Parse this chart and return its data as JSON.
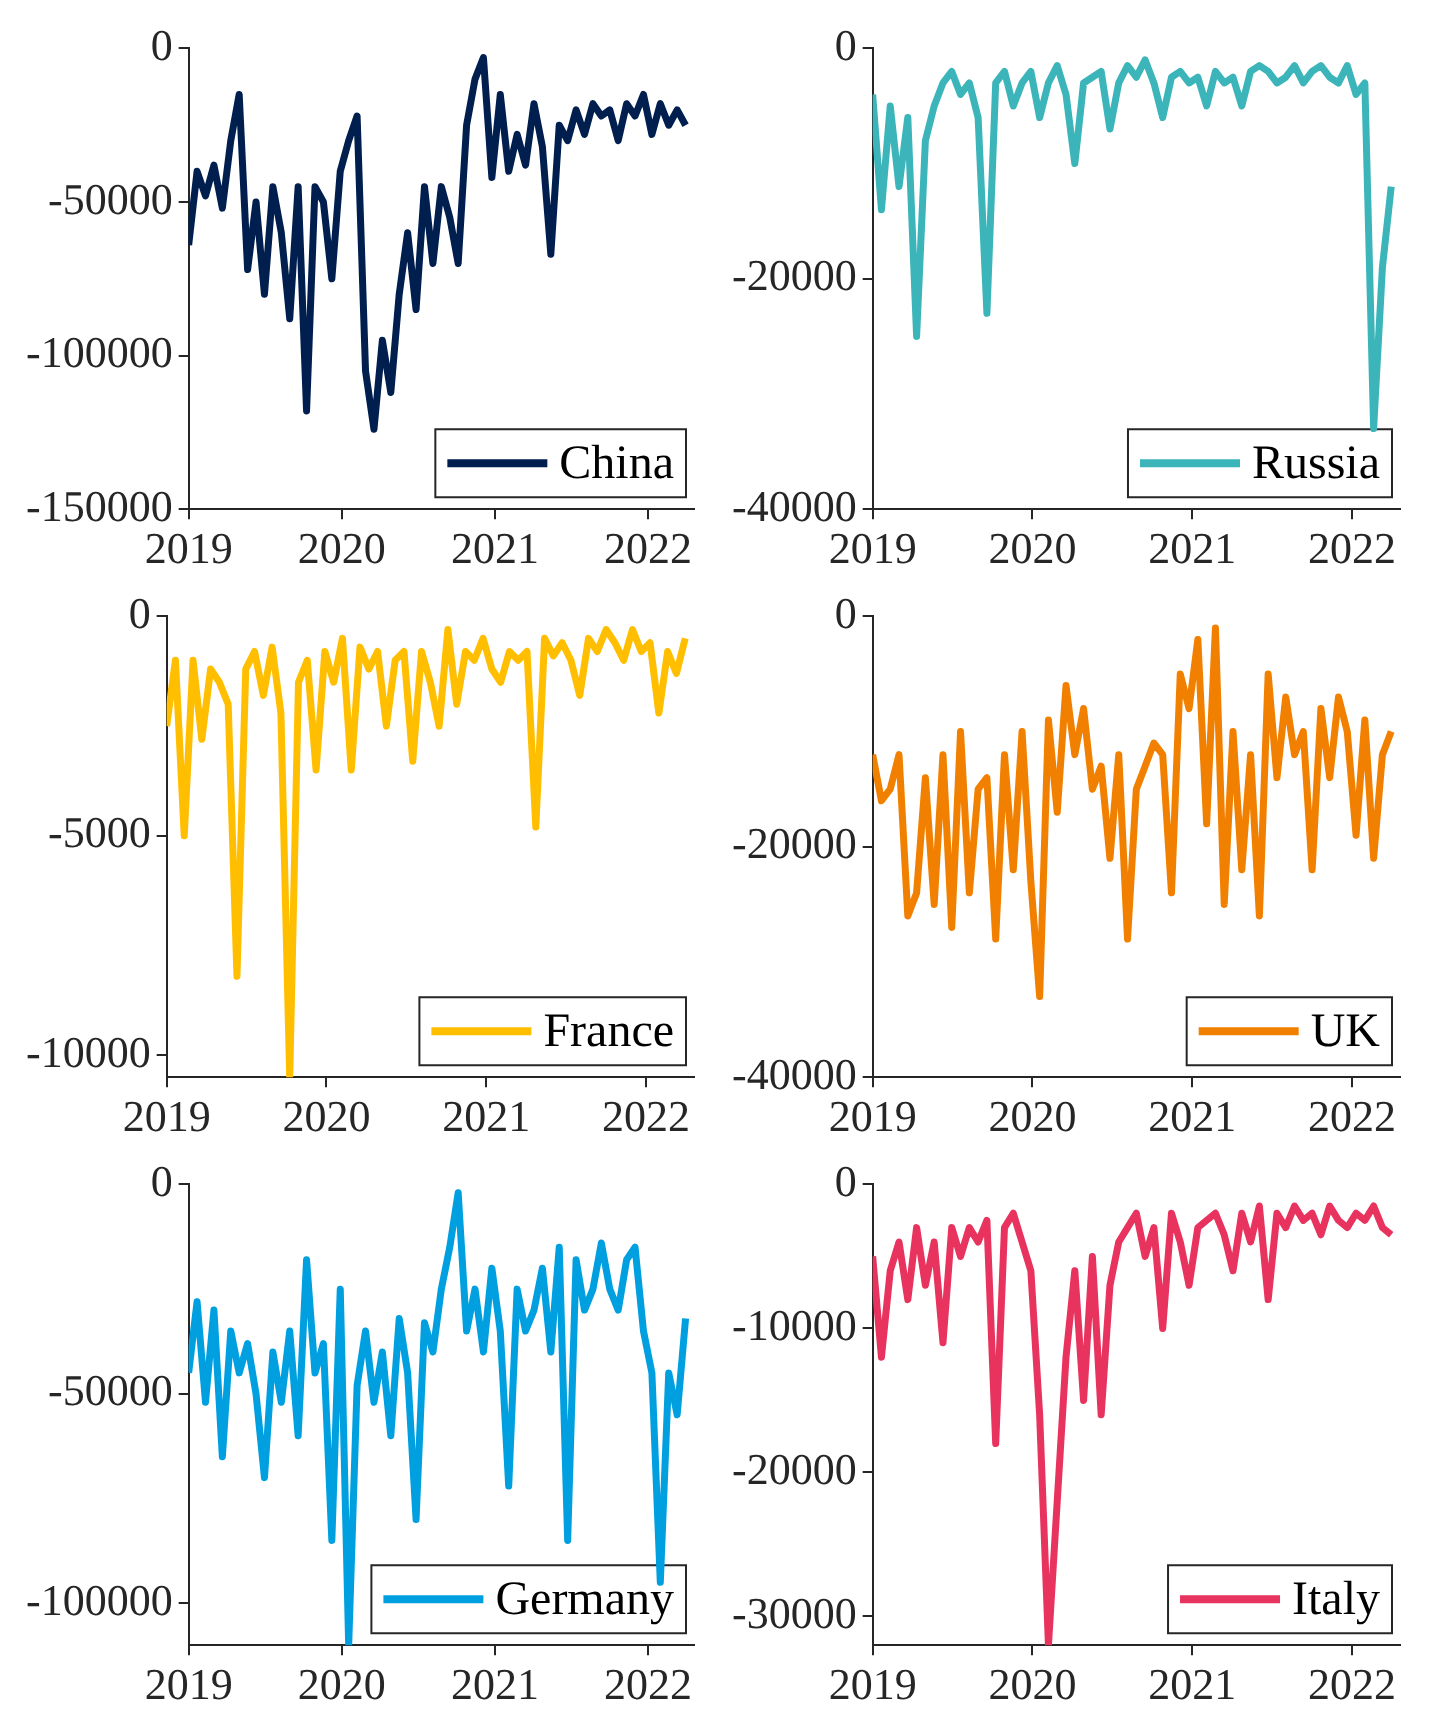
{
  "chart_data": [
    {
      "type": "line",
      "x": [
        2019,
        2019.055,
        2019.11,
        2019.165,
        2019.22,
        2019.275,
        2019.33,
        2019.385,
        2019.44,
        2019.495,
        2019.55,
        2019.605,
        2019.66,
        2019.715,
        2019.77,
        2019.825,
        2019.88,
        2019.935,
        2019.99,
        2020.045,
        2020.1,
        2020.155,
        2020.21,
        2020.265,
        2020.32,
        2020.375,
        2020.43,
        2020.485,
        2020.54,
        2020.595,
        2020.65,
        2020.705,
        2020.76,
        2020.815,
        2020.87,
        2020.925,
        2020.98,
        2021.035,
        2021.09,
        2021.145,
        2021.2,
        2021.255,
        2021.31,
        2021.365,
        2021.42,
        2021.475,
        2021.53,
        2021.585,
        2021.64,
        2021.695,
        2021.75,
        2021.805,
        2021.86,
        2021.915,
        2021.97,
        2022.025,
        2022.08,
        2022.135,
        2022.19,
        2022.245
      ],
      "series": [
        {
          "name": "China",
          "color": "#001f4f",
          "values": [
            -64000,
            -40000,
            -48000,
            -38000,
            -52000,
            -30000,
            -15000,
            -72000,
            -50000,
            -80000,
            -45000,
            -60000,
            -88000,
            -45000,
            -118000,
            -45000,
            -50000,
            -75000,
            -40000,
            -30000,
            -22000,
            -105000,
            -124000,
            -95000,
            -112000,
            -80000,
            -60000,
            -85000,
            -45000,
            -70000,
            -45000,
            -55000,
            -70000,
            -25000,
            -10000,
            -3000,
            -42000,
            -15000,
            -40000,
            -28000,
            -38000,
            -18000,
            -32000,
            -67000,
            -25000,
            -30000,
            -20000,
            -28000,
            -18000,
            -22000,
            -20000,
            -30000,
            -18000,
            -22000,
            -15000,
            -28000,
            -18000,
            -25000,
            -20000,
            -25000
          ]
        }
      ],
      "xlim": [
        2019,
        2022.3
      ],
      "xticks": [
        2019,
        2020,
        2021,
        2022
      ],
      "ylim": [
        -150000,
        0
      ],
      "yticks": [
        -150000,
        -100000,
        -50000,
        0
      ],
      "legend": "bottom right",
      "grid": false
    },
    {
      "type": "line",
      "x": [
        2019,
        2019.055,
        2019.11,
        2019.165,
        2019.22,
        2019.275,
        2019.33,
        2019.385,
        2019.44,
        2019.495,
        2019.55,
        2019.605,
        2019.66,
        2019.715,
        2019.77,
        2019.825,
        2019.88,
        2019.935,
        2019.99,
        2020.045,
        2020.1,
        2020.155,
        2020.21,
        2020.265,
        2020.32,
        2020.375,
        2020.43,
        2020.485,
        2020.54,
        2020.595,
        2020.65,
        2020.705,
        2020.76,
        2020.815,
        2020.87,
        2020.925,
        2020.98,
        2021.035,
        2021.09,
        2021.145,
        2021.2,
        2021.255,
        2021.31,
        2021.365,
        2021.42,
        2021.475,
        2021.53,
        2021.585,
        2021.64,
        2021.695,
        2021.75,
        2021.805,
        2021.86,
        2021.915,
        2021.97,
        2022.025,
        2022.08,
        2022.135,
        2022.19,
        2022.245
      ],
      "series": [
        {
          "name": "Russia",
          "color": "#3bb5b9",
          "values": [
            -4000,
            -14000,
            -5000,
            -12000,
            -6000,
            -25000,
            -8000,
            -5000,
            -3000,
            -2000,
            -4000,
            -3000,
            -6000,
            -23000,
            -3000,
            -2000,
            -5000,
            -3000,
            -2000,
            -6000,
            -3000,
            -1500,
            -4000,
            -10000,
            -3000,
            -2500,
            -2000,
            -7000,
            -3000,
            -1500,
            -2500,
            -1000,
            -3000,
            -6000,
            -2500,
            -2000,
            -3000,
            -2500,
            -5000,
            -2000,
            -3000,
            -2500,
            -5000,
            -2000,
            -1500,
            -2000,
            -3000,
            -2500,
            -1500,
            -3000,
            -2000,
            -1500,
            -2500,
            -3000,
            -1500,
            -4000,
            -3000,
            -33000,
            -19000,
            -12000
          ]
        }
      ],
      "xlim": [
        2019,
        2022.3
      ],
      "xticks": [
        2019,
        2020,
        2021,
        2022
      ],
      "ylim": [
        -40000,
        0
      ],
      "yticks": [
        -40000,
        -20000,
        0
      ],
      "legend": "bottom right",
      "grid": false
    },
    {
      "type": "line",
      "x": [
        2019,
        2019.055,
        2019.11,
        2019.165,
        2019.22,
        2019.275,
        2019.33,
        2019.385,
        2019.44,
        2019.495,
        2019.55,
        2019.605,
        2019.66,
        2019.715,
        2019.77,
        2019.825,
        2019.88,
        2019.935,
        2019.99,
        2020.045,
        2020.1,
        2020.155,
        2020.21,
        2020.265,
        2020.32,
        2020.375,
        2020.43,
        2020.485,
        2020.54,
        2020.595,
        2020.65,
        2020.705,
        2020.76,
        2020.815,
        2020.87,
        2020.925,
        2020.98,
        2021.035,
        2021.09,
        2021.145,
        2021.2,
        2021.255,
        2021.31,
        2021.365,
        2021.42,
        2021.475,
        2021.53,
        2021.585,
        2021.64,
        2021.695,
        2021.75,
        2021.805,
        2021.86,
        2021.915,
        2021.97,
        2022.025,
        2022.08,
        2022.135,
        2022.19,
        2022.245
      ],
      "series": [
        {
          "name": "France",
          "color": "#ffbf00",
          "values": [
            -2500,
            -1000,
            -5000,
            -1000,
            -2800,
            -1200,
            -1500,
            -2000,
            -8200,
            -1200,
            -800,
            -1800,
            -700,
            -2200,
            -10500,
            -1500,
            -1000,
            -3500,
            -800,
            -1500,
            -500,
            -3500,
            -700,
            -1200,
            -800,
            -2500,
            -1000,
            -800,
            -3300,
            -800,
            -1500,
            -2500,
            -300,
            -2000,
            -800,
            -1000,
            -500,
            -1200,
            -1500,
            -800,
            -1000,
            -800,
            -4800,
            -500,
            -900,
            -600,
            -1000,
            -1800,
            -500,
            -800,
            -300,
            -600,
            -1000,
            -300,
            -800,
            -600,
            -2200,
            -800,
            -1300,
            -500
          ]
        }
      ],
      "xlim": [
        2019,
        2022.3
      ],
      "xticks": [
        2019,
        2020,
        2021,
        2022
      ],
      "ylim": [
        -10500,
        0
      ],
      "yticks": [
        -10000,
        -5000,
        0
      ],
      "legend": "bottom right",
      "grid": false
    },
    {
      "type": "line",
      "x": [
        2019,
        2019.055,
        2019.11,
        2019.165,
        2019.22,
        2019.275,
        2019.33,
        2019.385,
        2019.44,
        2019.495,
        2019.55,
        2019.605,
        2019.66,
        2019.715,
        2019.77,
        2019.825,
        2019.88,
        2019.935,
        2019.99,
        2020.045,
        2020.1,
        2020.155,
        2020.21,
        2020.265,
        2020.32,
        2020.375,
        2020.43,
        2020.485,
        2020.54,
        2020.595,
        2020.65,
        2020.705,
        2020.76,
        2020.815,
        2020.87,
        2020.925,
        2020.98,
        2021.035,
        2021.09,
        2021.145,
        2021.2,
        2021.255,
        2021.31,
        2021.365,
        2021.42,
        2021.475,
        2021.53,
        2021.585,
        2021.64,
        2021.695,
        2021.75,
        2021.805,
        2021.86,
        2021.915,
        2021.97,
        2022.025,
        2022.08,
        2022.135,
        2022.19,
        2022.245
      ],
      "series": [
        {
          "name": "UK",
          "color": "#f28000",
          "values": [
            -12000,
            -16000,
            -15000,
            -12000,
            -26000,
            -24000,
            -14000,
            -25000,
            -12000,
            -27000,
            -10000,
            -24000,
            -15000,
            -14000,
            -28000,
            -12000,
            -22000,
            -10000,
            -23000,
            -33000,
            -9000,
            -17000,
            -6000,
            -12000,
            -8000,
            -15000,
            -13000,
            -21000,
            -12000,
            -28000,
            -15000,
            -13000,
            -11000,
            -12000,
            -24000,
            -5000,
            -8000,
            -2000,
            -18000,
            -1000,
            -25000,
            -10000,
            -22000,
            -12000,
            -26000,
            -5000,
            -14000,
            -7000,
            -12000,
            -10000,
            -22000,
            -8000,
            -14000,
            -7000,
            -10000,
            -19000,
            -9000,
            -21000,
            -12000,
            -10000
          ]
        }
      ],
      "xlim": [
        2019,
        2022.3
      ],
      "xticks": [
        2019,
        2020,
        2021,
        2022
      ],
      "ylim": [
        -40000,
        0
      ],
      "yticks": [
        -40000,
        -20000,
        0
      ],
      "legend": "bottom right",
      "grid": false
    },
    {
      "type": "line",
      "x": [
        2019,
        2019.055,
        2019.11,
        2019.165,
        2019.22,
        2019.275,
        2019.33,
        2019.385,
        2019.44,
        2019.495,
        2019.55,
        2019.605,
        2019.66,
        2019.715,
        2019.77,
        2019.825,
        2019.88,
        2019.935,
        2019.99,
        2020.045,
        2020.1,
        2020.155,
        2020.21,
        2020.265,
        2020.32,
        2020.375,
        2020.43,
        2020.485,
        2020.54,
        2020.595,
        2020.65,
        2020.705,
        2020.76,
        2020.815,
        2020.87,
        2020.925,
        2020.98,
        2021.035,
        2021.09,
        2021.145,
        2021.2,
        2021.255,
        2021.31,
        2021.365,
        2021.42,
        2021.475,
        2021.53,
        2021.585,
        2021.64,
        2021.695,
        2021.75,
        2021.805,
        2021.86,
        2021.915,
        2021.97,
        2022.025,
        2022.08,
        2022.135,
        2022.19,
        2022.245
      ],
      "series": [
        {
          "name": "Germany",
          "color": "#00a0e0",
          "values": [
            -45000,
            -28000,
            -52000,
            -30000,
            -65000,
            -35000,
            -45000,
            -38000,
            -50000,
            -70000,
            -40000,
            -52000,
            -35000,
            -60000,
            -18000,
            -45000,
            -38000,
            -85000,
            -25000,
            -110000,
            -48000,
            -35000,
            -52000,
            -40000,
            -60000,
            -32000,
            -45000,
            -80000,
            -33000,
            -40000,
            -25000,
            -15000,
            -2000,
            -35000,
            -25000,
            -40000,
            -20000,
            -35000,
            -72000,
            -25000,
            -35000,
            -30000,
            -20000,
            -40000,
            -15000,
            -85000,
            -18000,
            -30000,
            -25000,
            -14000,
            -25000,
            -30000,
            -18000,
            -15000,
            -35000,
            -45000,
            -95000,
            -45000,
            -55000,
            -32000
          ]
        }
      ],
      "xlim": [
        2019,
        2022.3
      ],
      "xticks": [
        2019,
        2020,
        2021,
        2022
      ],
      "ylim": [
        -110000,
        0
      ],
      "yticks": [
        -100000,
        -50000,
        0
      ],
      "legend": "bottom right",
      "grid": false
    },
    {
      "type": "line",
      "x": [
        2019,
        2019.055,
        2019.11,
        2019.165,
        2019.22,
        2019.275,
        2019.33,
        2019.385,
        2019.44,
        2019.495,
        2019.55,
        2019.605,
        2019.66,
        2019.715,
        2019.77,
        2019.825,
        2019.88,
        2019.935,
        2019.99,
        2020.045,
        2020.1,
        2020.155,
        2020.21,
        2020.265,
        2020.32,
        2020.375,
        2020.43,
        2020.485,
        2020.54,
        2020.595,
        2020.65,
        2020.705,
        2020.76,
        2020.815,
        2020.87,
        2020.925,
        2020.98,
        2021.035,
        2021.09,
        2021.145,
        2021.2,
        2021.255,
        2021.31,
        2021.365,
        2021.42,
        2021.475,
        2021.53,
        2021.585,
        2021.64,
        2021.695,
        2021.75,
        2021.805,
        2021.86,
        2021.915,
        2021.97,
        2022.025,
        2022.08,
        2022.135,
        2022.19,
        2022.245
      ],
      "series": [
        {
          "name": "Italy",
          "color": "#e8335f",
          "values": [
            -5000,
            -12000,
            -6000,
            -4000,
            -8000,
            -3000,
            -7000,
            -4000,
            -11000,
            -3000,
            -5000,
            -3000,
            -4000,
            -2500,
            -18000,
            -3000,
            -2000,
            -4000,
            -6000,
            -16000,
            -32000,
            -22000,
            -12000,
            -6000,
            -15000,
            -5000,
            -16000,
            -7000,
            -4000,
            -3000,
            -2000,
            -5000,
            -3000,
            -10000,
            -2000,
            -4000,
            -7000,
            -3000,
            -2500,
            -2000,
            -3500,
            -6000,
            -2000,
            -4000,
            -1500,
            -8000,
            -2000,
            -3000,
            -1500,
            -2500,
            -2000,
            -3500,
            -1500,
            -2500,
            -3000,
            -2000,
            -2500,
            -1500,
            -3000,
            -3500
          ]
        }
      ],
      "xlim": [
        2019,
        2022.3
      ],
      "xticks": [
        2019,
        2020,
        2021,
        2022
      ],
      "ylim": [
        -32000,
        0
      ],
      "yticks": [
        -30000,
        -20000,
        -10000,
        0
      ],
      "legend": "bottom right",
      "grid": false
    }
  ]
}
